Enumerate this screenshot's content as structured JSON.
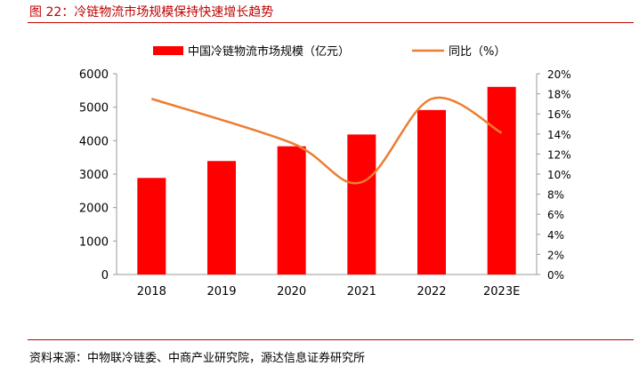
{
  "figure": {
    "title": "图 22：冷链物流市场规模保持快速增长趋势",
    "source": "资料来源：中物联冷链委、中商产业研究院，源达信息证券研究所"
  },
  "colors": {
    "bar": "#ff0000",
    "line": "#ed7d31",
    "accent": "#c00000",
    "axis": "#999999"
  },
  "chart_data": {
    "type": "bar+line",
    "title": "",
    "categories": [
      "2018",
      "2019",
      "2020",
      "2021",
      "2022",
      "2023E"
    ],
    "series": [
      {
        "name": "中国冷链物流市场规模（亿元）",
        "type": "bar",
        "axis": "left",
        "values": [
          2886,
          3391,
          3832,
          4184,
          4916,
          5608
        ]
      },
      {
        "name": "同比（%）",
        "type": "line",
        "axis": "right",
        "values": [
          17.5,
          null,
          13.1,
          9.2,
          17.5,
          14.1
        ]
      }
    ],
    "y_left": {
      "lim": [
        0,
        6000
      ],
      "ticks": [
        "0",
        "1000",
        "2000",
        "3000",
        "4000",
        "5000",
        "6000"
      ]
    },
    "y_right": {
      "lim": [
        0,
        20
      ],
      "ticks": [
        "0%",
        "2%",
        "4%",
        "6%",
        "8%",
        "10%",
        "12%",
        "14%",
        "16%",
        "18%",
        "20%"
      ]
    },
    "legend": {
      "position": "top-center",
      "items": [
        "中国冷链物流市场规模（亿元）",
        "同比（%）"
      ]
    },
    "grid": false
  }
}
